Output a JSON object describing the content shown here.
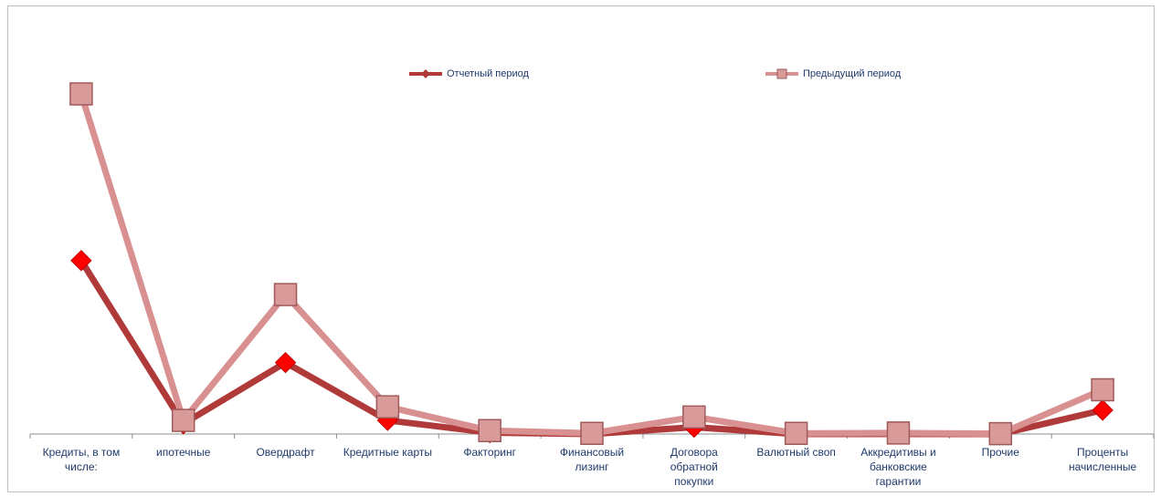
{
  "chart_data": {
    "type": "line",
    "title": "",
    "xlabel": "",
    "ylabel": "",
    "categories": [
      "Кредиты, в том\nчисле:",
      "ипотечные",
      "Овердрафт",
      "Кредитные карты",
      "Факторинг",
      "Финансовый\nлизинг",
      "Договора\nобратной\nпокупки",
      "Валютный своп",
      "Аккредитивы и\nбанковские\nгарантии",
      "Прочие",
      "Проценты\nначисленные"
    ],
    "series": [
      {
        "name": "Отчетный период",
        "color": "#b03a3a",
        "marker": "diamond",
        "marker_color": "#ff0000",
        "values": [
          51,
          3,
          21,
          4,
          0.4,
          0,
          2,
          0,
          0,
          0,
          7
        ]
      },
      {
        "name": "Предыдущий период",
        "color": "#d89090",
        "marker": "square",
        "marker_color": "#d99a9a",
        "values": [
          100,
          4,
          41,
          8,
          1,
          0.2,
          5,
          0.2,
          0.3,
          0.1,
          13
        ]
      }
    ],
    "ylim": [
      0,
      100
    ],
    "grid": false,
    "legend": "top"
  }
}
